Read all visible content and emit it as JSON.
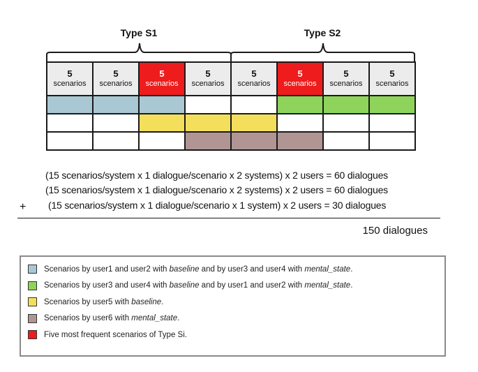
{
  "types": [
    {
      "label": "Type S1"
    },
    {
      "label": "Type S2"
    }
  ],
  "header_cells": [
    {
      "count": "5",
      "label": "scenarios",
      "highlight": false
    },
    {
      "count": "5",
      "label": "scenarios",
      "highlight": false
    },
    {
      "count": "5",
      "label": "scenarios",
      "highlight": true
    },
    {
      "count": "5",
      "label": "scenarios",
      "highlight": false
    },
    {
      "count": "5",
      "label": "scenarios",
      "highlight": false
    },
    {
      "count": "5",
      "label": "scenarios",
      "highlight": true
    },
    {
      "count": "5",
      "label": "scenarios",
      "highlight": false
    },
    {
      "count": "5",
      "label": "scenarios",
      "highlight": false
    }
  ],
  "grid_rows": [
    [
      "blue",
      "blue",
      "blue",
      "none",
      "none",
      "green",
      "green",
      "green"
    ],
    [
      "none",
      "none",
      "yellow",
      "yellow",
      "yellow",
      "none",
      "none",
      "none"
    ],
    [
      "none",
      "none",
      "none",
      "brown",
      "brown",
      "brown",
      "none",
      "none"
    ]
  ],
  "colors": {
    "blue": "#a9c8d3",
    "green": "#8fd45a",
    "yellow": "#f4df5c",
    "brown": "#b19595",
    "red": "#ee1c1c"
  },
  "calculation": {
    "lines": [
      "(15 scenarios/system x 1 dialogue/scenario x 2 systems) x 2 users = 60 dialogues",
      "(15 scenarios/system x 1 dialogue/scenario x 2 systems) x 2 users = 60 dialogues",
      "(15 scenarios/system x 1 dialogue/scenario x 1 system) x 2 users = 30 dialogues"
    ],
    "operator": "+",
    "total": "150 dialogues"
  },
  "legend": [
    {
      "color": "blue",
      "parts": [
        "Scenarios by user1 and user2 with ",
        "baseline",
        " and by user3 and user4 with ",
        "mental_state",
        "."
      ]
    },
    {
      "color": "green",
      "parts": [
        "Scenarios by user3 and user4 with ",
        "baseline",
        " and by user1 and user2 with ",
        "mental_state",
        "."
      ]
    },
    {
      "color": "yellow",
      "parts": [
        "Scenarios by user5 with ",
        "baseline",
        ".",
        "",
        ""
      ]
    },
    {
      "color": "brown",
      "parts": [
        "Scenarios by user6 with ",
        "mental_state",
        ".",
        "",
        ""
      ]
    },
    {
      "color": "red",
      "parts": [
        "Five most frequent scenarios of Type Si.",
        "",
        "",
        "",
        ""
      ]
    }
  ]
}
